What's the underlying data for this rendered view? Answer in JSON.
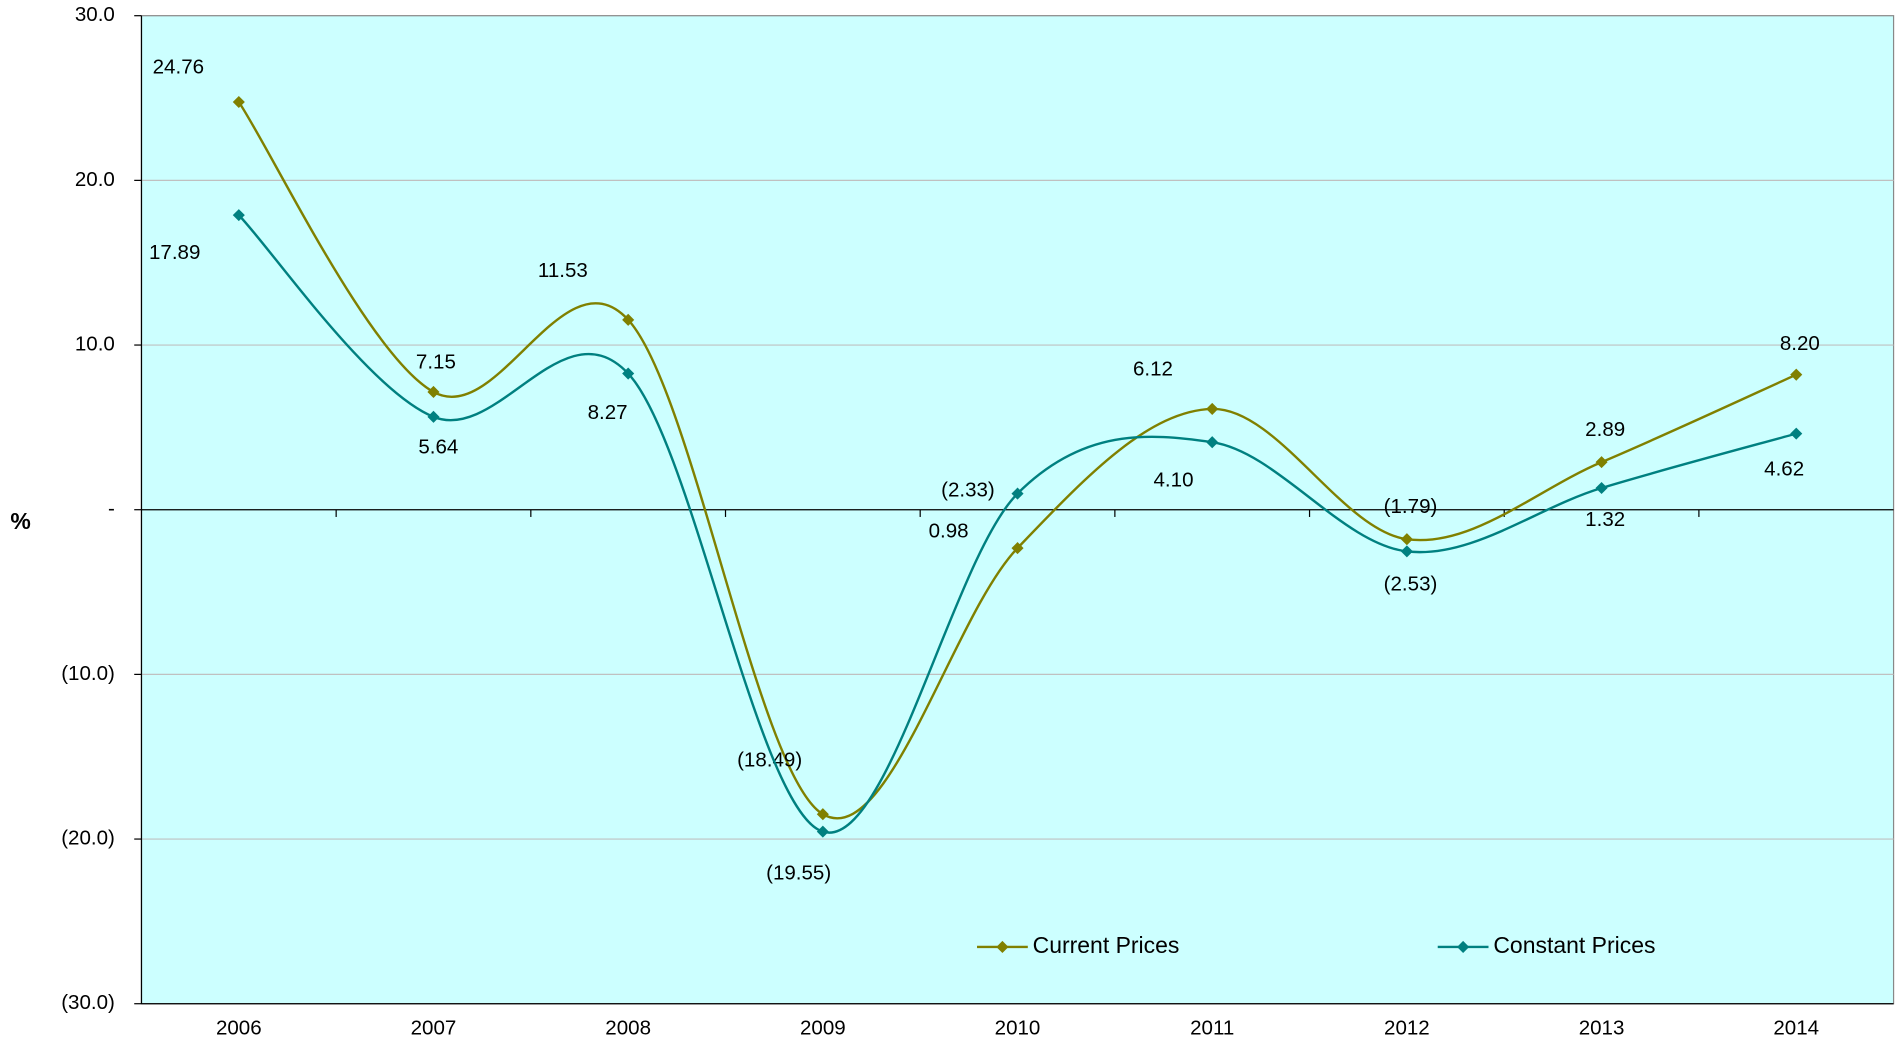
{
  "chart_data": {
    "type": "line",
    "y_label": "%",
    "categories": [
      "2006",
      "2007",
      "2008",
      "2009",
      "2010",
      "2011",
      "2012",
      "2013",
      "2014"
    ],
    "series": [
      {
        "name": "Current Prices",
        "color": "#808000",
        "values": [
          24.76,
          7.15,
          11.53,
          -18.49,
          -2.33,
          6.12,
          -1.79,
          2.89,
          8.2
        ],
        "value_labels": [
          "24.76",
          "7.15",
          "11.53",
          "(18.49)",
          "(2.33)",
          "6.12",
          "(1.79)",
          "2.89",
          "8.20"
        ]
      },
      {
        "name": "Constant Prices",
        "color": "#008080",
        "values": [
          17.89,
          5.64,
          8.27,
          -19.55,
          0.98,
          4.1,
          -2.53,
          1.32,
          4.62
        ],
        "value_labels": [
          "17.89",
          "5.64",
          "8.27",
          "(19.55)",
          "0.98",
          "4.10",
          "(2.53)",
          "1.32",
          "4.62"
        ]
      }
    ],
    "ylim": [
      -30,
      30
    ],
    "yticks": [
      {
        "value": -30,
        "label": "(30.0)"
      },
      {
        "value": -20,
        "label": "(20.0)"
      },
      {
        "value": -10,
        "label": "(10.0)"
      },
      {
        "value": 0,
        "label": "-"
      },
      {
        "value": 10,
        "label": "10.0"
      },
      {
        "value": 20,
        "label": "20.0"
      },
      {
        "value": 30,
        "label": "30.0"
      }
    ],
    "grid": true,
    "smooth": true,
    "background": "#ccffff",
    "legend": "bottom"
  }
}
